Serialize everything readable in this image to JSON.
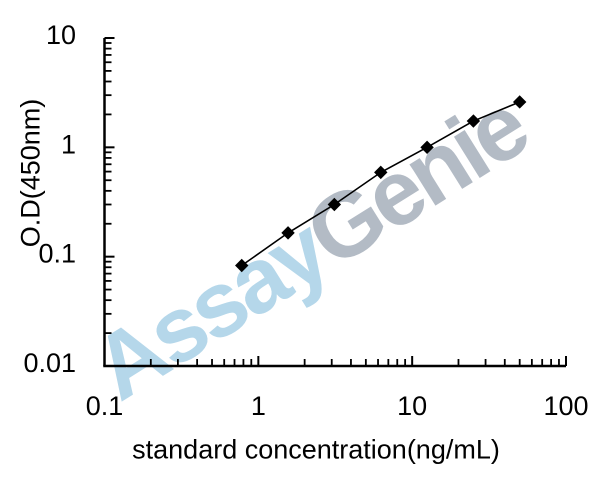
{
  "chart_data": {
    "type": "line",
    "title": "",
    "xlabel": "standard concentration(ng/mL)",
    "ylabel": "O.D(450nm)",
    "x_scale": "log",
    "y_scale": "log",
    "xlim": [
      0.1,
      100
    ],
    "ylim": [
      0.01,
      10
    ],
    "x_ticks": [
      0.1,
      1,
      10,
      100
    ],
    "x_tick_labels": [
      "0.1",
      "1",
      "10",
      "100"
    ],
    "y_ticks": [
      0.01,
      0.1,
      1,
      10
    ],
    "y_tick_labels": [
      "0.01",
      "0.1",
      "1",
      "10"
    ],
    "grid": false,
    "legend": false,
    "series": [
      {
        "marker": "diamond",
        "color": "#000000",
        "x": [
          0.78,
          1.56,
          3.12,
          6.25,
          12.5,
          25,
          50
        ],
        "y": [
          0.083,
          0.165,
          0.3,
          0.59,
          1.0,
          1.74,
          2.6
        ]
      }
    ]
  },
  "watermark": {
    "part1": "Assay",
    "part2": "Genie",
    "color1": "#b5d7ea",
    "color2": "#b3bbc5"
  },
  "colors": {
    "axis": "#000000",
    "text": "#000000",
    "background": "#ffffff"
  }
}
